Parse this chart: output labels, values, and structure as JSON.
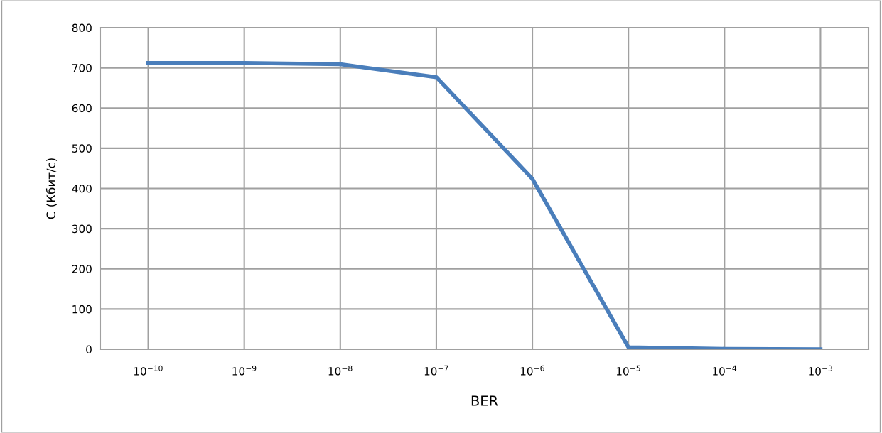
{
  "chart_data": {
    "type": "line",
    "xlabel": "BER",
    "ylabel": "C (Кбит/с)",
    "categories": [
      "10$^{−10}$",
      "10$^{−9}$",
      "10$^{−8}$",
      "10$^{−7}$",
      "10$^{−6}$",
      "10$^{−5}$",
      "10$^{−4}$",
      "10$^{−3}$"
    ],
    "series": [
      {
        "color": "#4a7ebb",
        "values": [
          712,
          712,
          709,
          677,
          424,
          5,
          1,
          0
        ]
      }
    ],
    "ylim": [
      0,
      800
    ],
    "yticks": [
      0,
      100,
      200,
      300,
      400,
      500,
      600,
      700,
      800
    ],
    "grid": true,
    "marker": "none",
    "line_style": "solid"
  }
}
